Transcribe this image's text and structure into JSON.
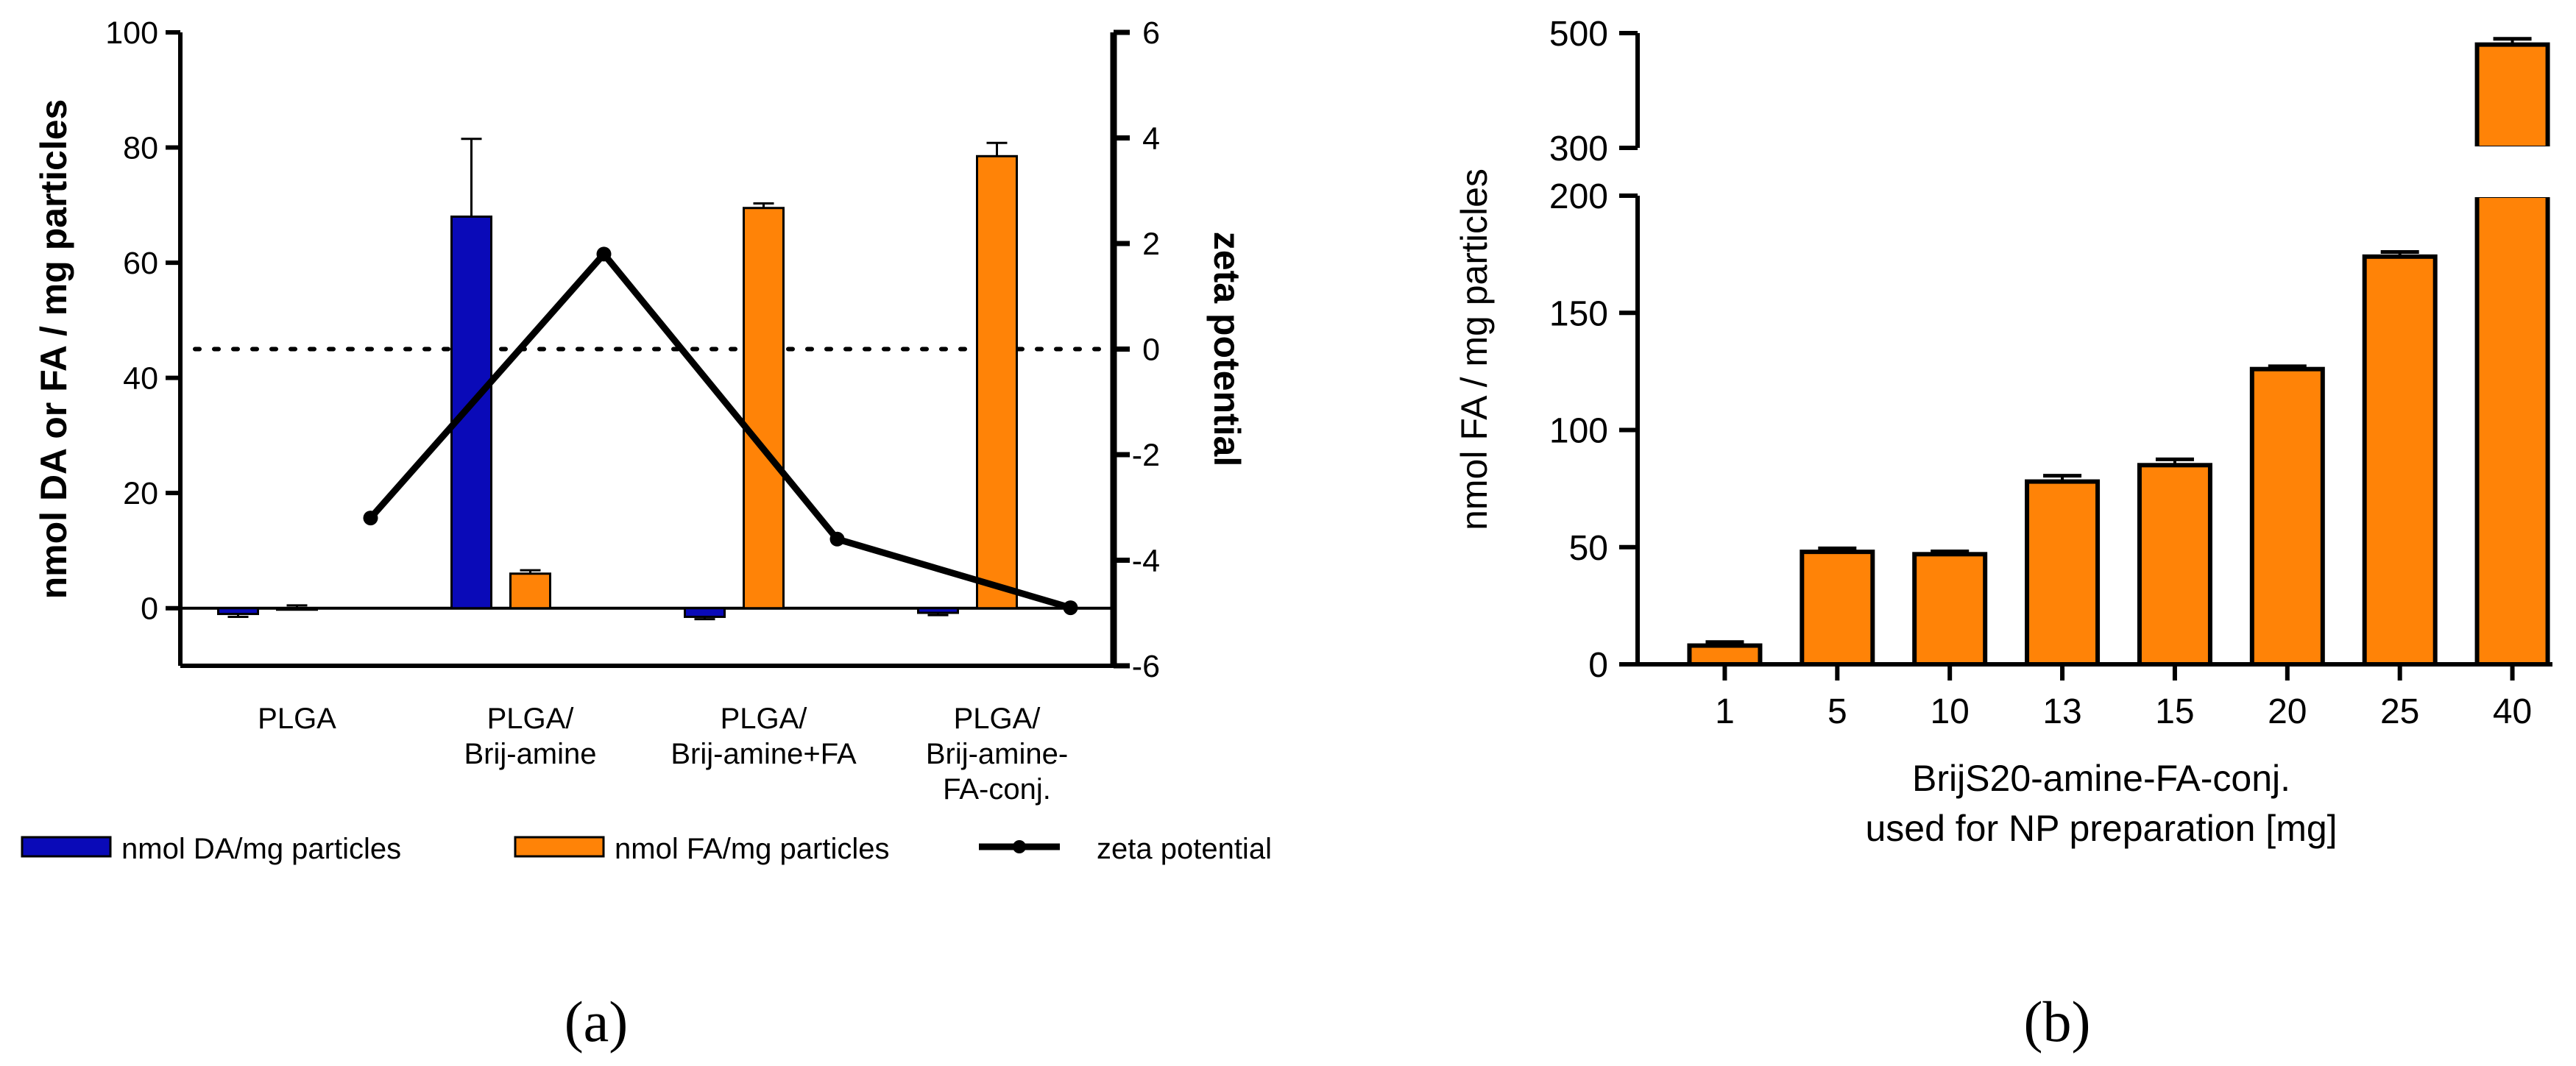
{
  "chart_data": [
    {
      "panel": "a",
      "type": "bar",
      "categories": [
        [
          "PLGA"
        ],
        [
          "PLGA/",
          "Brij-amine"
        ],
        [
          "PLGA/",
          "Brij-amine+FA"
        ],
        [
          "PLGA/",
          "Brij-amine-",
          "FA-conj."
        ]
      ],
      "series": [
        {
          "name": "nmol DA/mg particles",
          "kind": "bar",
          "axis": "left",
          "color": "#0a0ab8",
          "values": [
            -1,
            68,
            -1.5,
            -0.8
          ],
          "errors": [
            0.5,
            13.5,
            0.4,
            0.4
          ]
        },
        {
          "name": "nmol FA/mg particles",
          "kind": "bar",
          "axis": "left",
          "color": "#ff8307",
          "values": [
            0,
            6,
            69.5,
            78.5
          ],
          "errors": [
            0.5,
            0.6,
            0.8,
            2.3
          ]
        },
        {
          "name": "zeta potential",
          "kind": "line",
          "axis": "right",
          "color": "#000000",
          "values": [
            -3.2,
            1.8,
            -3.6,
            -4.9
          ]
        }
      ],
      "ylabel": "nmol DA or FA / mg particles",
      "y2label": "zeta potential",
      "ylim": [
        -10,
        100
      ],
      "yticks": [
        0,
        20,
        40,
        60,
        80,
        100
      ],
      "y2lim": [
        -6,
        6
      ],
      "y2ticks": [
        -6,
        -4,
        -2,
        0,
        2,
        4,
        6
      ],
      "y2tick_labels": [
        "-6",
        "-4",
        "-2",
        "0",
        "2",
        "4",
        "6"
      ],
      "reference_line": {
        "axis": "right",
        "value": 0,
        "style": "dotted"
      },
      "legend": [
        {
          "label": "nmol DA/mg particles",
          "type": "bar",
          "color": "#0a0ab8"
        },
        {
          "label": "nmol FA/mg particles",
          "type": "bar",
          "color": "#ff8307"
        },
        {
          "label": "zeta potential",
          "type": "line",
          "color": "#000000"
        }
      ],
      "legend_position": "bottom",
      "panel_label": "(a)"
    },
    {
      "panel": "b",
      "type": "bar",
      "categories": [
        "1",
        "5",
        "10",
        "13",
        "15",
        "20",
        "25",
        "40"
      ],
      "series": [
        {
          "name": "nmol FA / mg particles",
          "color": "#ff8307",
          "values": [
            8,
            48,
            47,
            78,
            85,
            126,
            174,
            480
          ],
          "errors": [
            1.5,
            1.5,
            1.2,
            2.5,
            2.5,
            1.2,
            2.0,
            10
          ]
        }
      ],
      "ylabel": "nmol FA / mg particles",
      "xlabel": [
        "BrijS20-amine-FA-conj.",
        "used for NP preparation [mg]"
      ],
      "axis_break": {
        "lower_range": [
          0,
          200
        ],
        "upper_range": [
          300,
          500
        ]
      },
      "yticks_lower": [
        0,
        50,
        100,
        150,
        200
      ],
      "yticks_upper": [
        300,
        500
      ],
      "panel_label": "(b)"
    }
  ]
}
